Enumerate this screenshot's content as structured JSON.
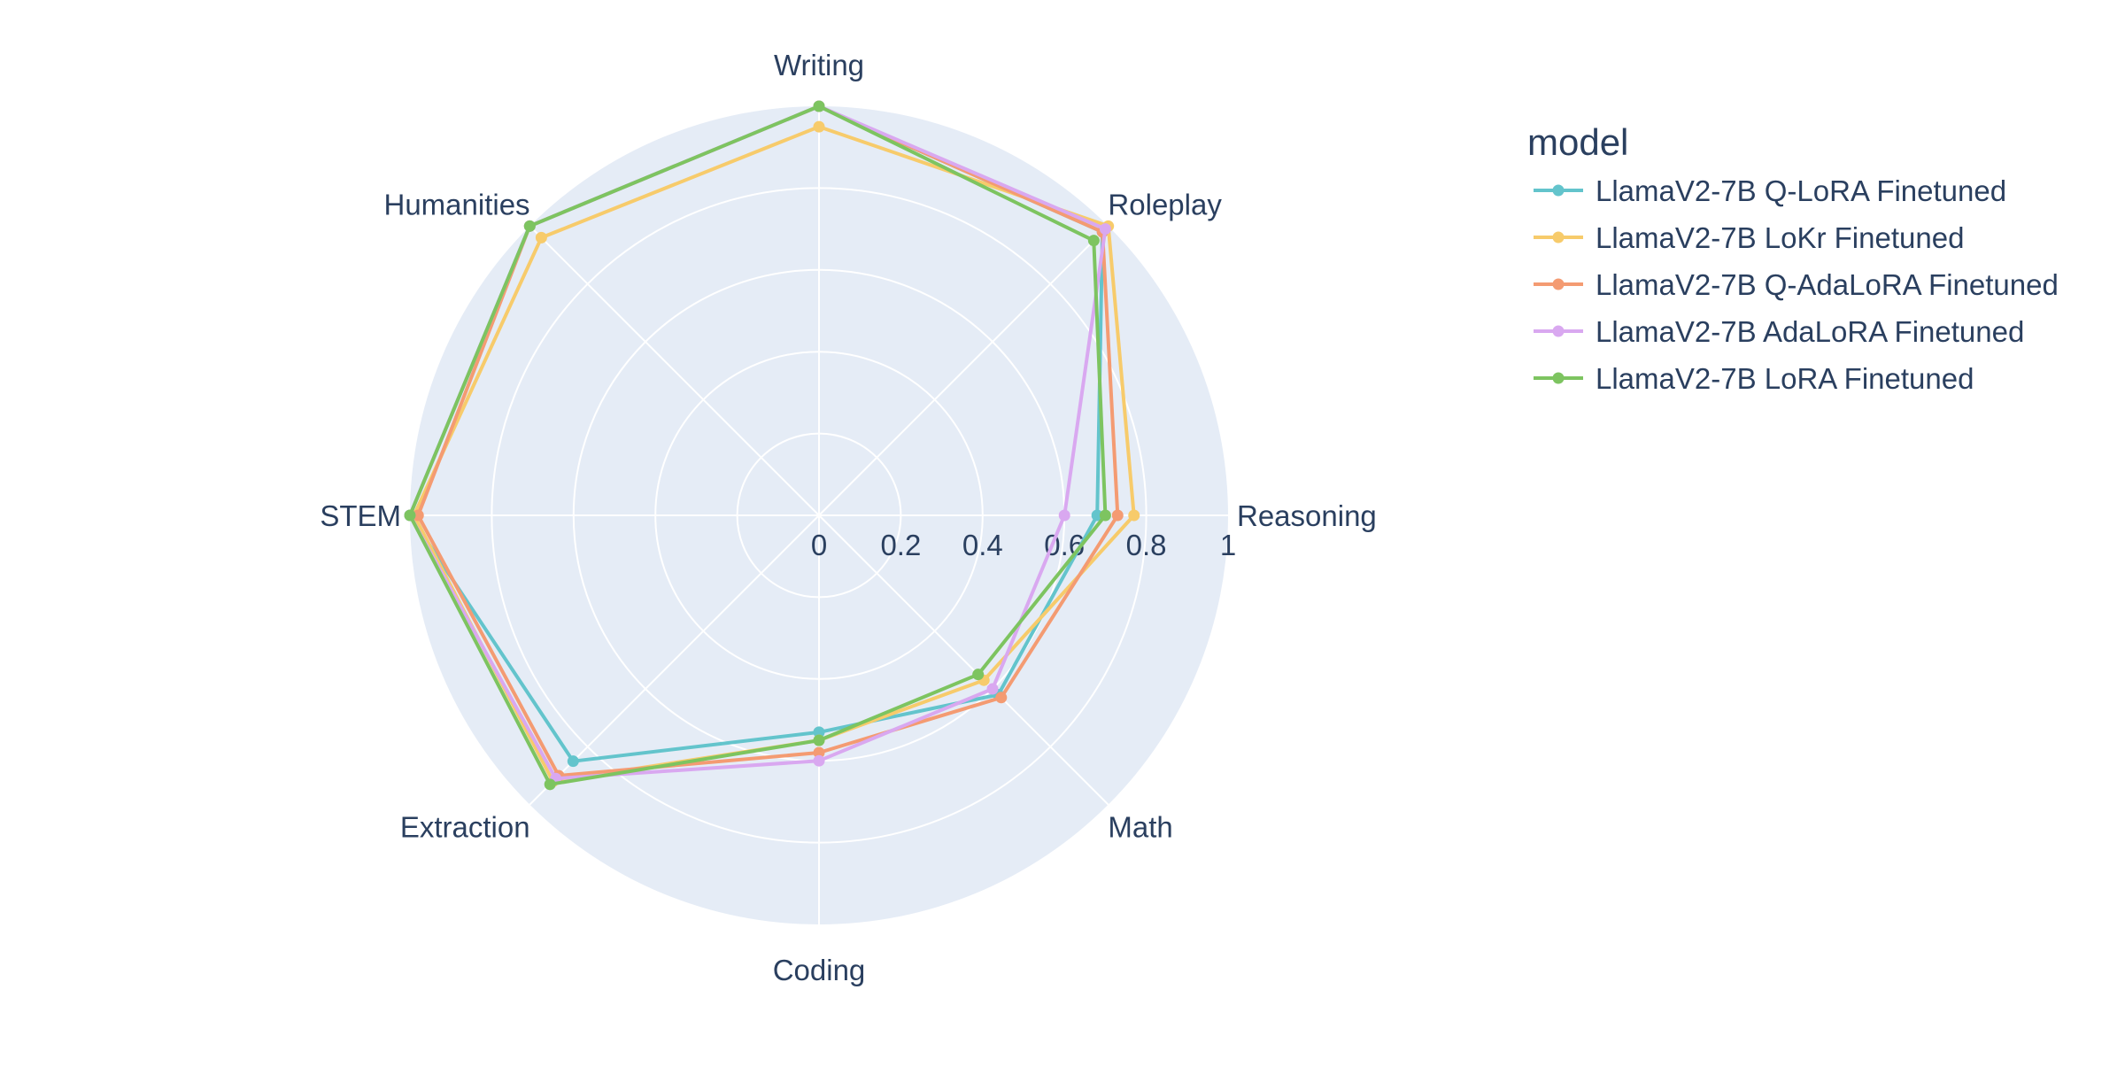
{
  "chart_data": {
    "type": "radar",
    "axes": [
      "Writing",
      "Roleplay",
      "Reasoning",
      "Math",
      "Coding",
      "Extraction",
      "STEM",
      "Humanities"
    ],
    "radial_range": [
      0,
      1
    ],
    "radial_ticks": [
      "0",
      "0.2",
      "0.4",
      "0.6",
      "0.8",
      "1"
    ],
    "grid": true,
    "legend_title": "model",
    "legend_position": "right",
    "series": [
      {
        "name": "LlamaV2-7B Q-LoRA Finetuned",
        "color": "#63c4cc",
        "values": [
          1.0,
          0.98,
          0.68,
          0.62,
          0.53,
          0.85,
          1.0,
          1.0
        ]
      },
      {
        "name": "LlamaV2-7B LoKr Finetuned",
        "color": "#f7cb6b",
        "values": [
          0.95,
          1.0,
          0.77,
          0.57,
          0.55,
          0.92,
          0.99,
          0.96
        ]
      },
      {
        "name": "LlamaV2-7B Q-AdaLoRA Finetuned",
        "color": "#f49b72",
        "values": [
          1.0,
          0.98,
          0.73,
          0.63,
          0.58,
          0.9,
          0.98,
          1.0
        ]
      },
      {
        "name": "LlamaV2-7B AdaLoRA Finetuned",
        "color": "#d9a8f0",
        "values": [
          1.0,
          0.99,
          0.6,
          0.6,
          0.6,
          0.91,
          1.0,
          1.0
        ]
      },
      {
        "name": "LlamaV2-7B LoRA Finetuned",
        "color": "#7dc460",
        "values": [
          1.0,
          0.95,
          0.7,
          0.55,
          0.55,
          0.93,
          1.0,
          1.0
        ]
      }
    ]
  }
}
